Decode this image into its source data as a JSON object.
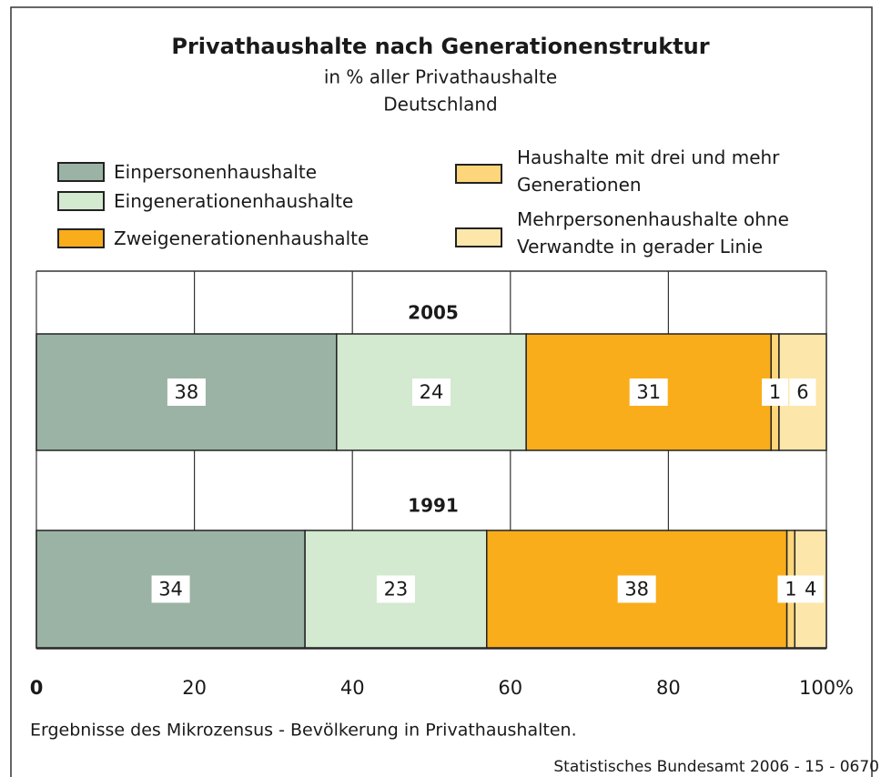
{
  "chart_data": {
    "type": "stacked-bar-horizontal",
    "title": "Privathaushalte nach Generationenstruktur",
    "subtitle": [
      "in % aller Privathaushalte",
      "Deutschland"
    ],
    "categories": [
      "2005",
      "1991"
    ],
    "series": [
      {
        "name": "Einpersonenhaushalte",
        "color": "#9bb3a4",
        "values": [
          38,
          34
        ]
      },
      {
        "name": "Eingenerationenhaushalte",
        "color": "#d3e9d0",
        "values": [
          24,
          23
        ]
      },
      {
        "name": "Zweigenerationenhaushalte",
        "color": "#f9ad1b",
        "values": [
          31,
          38
        ]
      },
      {
        "name": "Haushalte mit drei und mehr Generationen",
        "color": "#fdd57a",
        "values": [
          1,
          1
        ]
      },
      {
        "name": "Mehrpersonenhaushalte ohne Verwandte in gerader Linie",
        "color": "#fde6a9",
        "values": [
          6,
          4
        ]
      }
    ],
    "xlim": [
      0,
      100
    ],
    "xticks": [
      0,
      20,
      40,
      60,
      80,
      {
        "value": 100,
        "label": "100%"
      }
    ],
    "grid": true,
    "footnote": "Ergebnisse des Mikrozensus - Bevölkerung in Privathaushalten.",
    "source": "Statistisches Bundesamt 2006 - 15 - 0670"
  }
}
